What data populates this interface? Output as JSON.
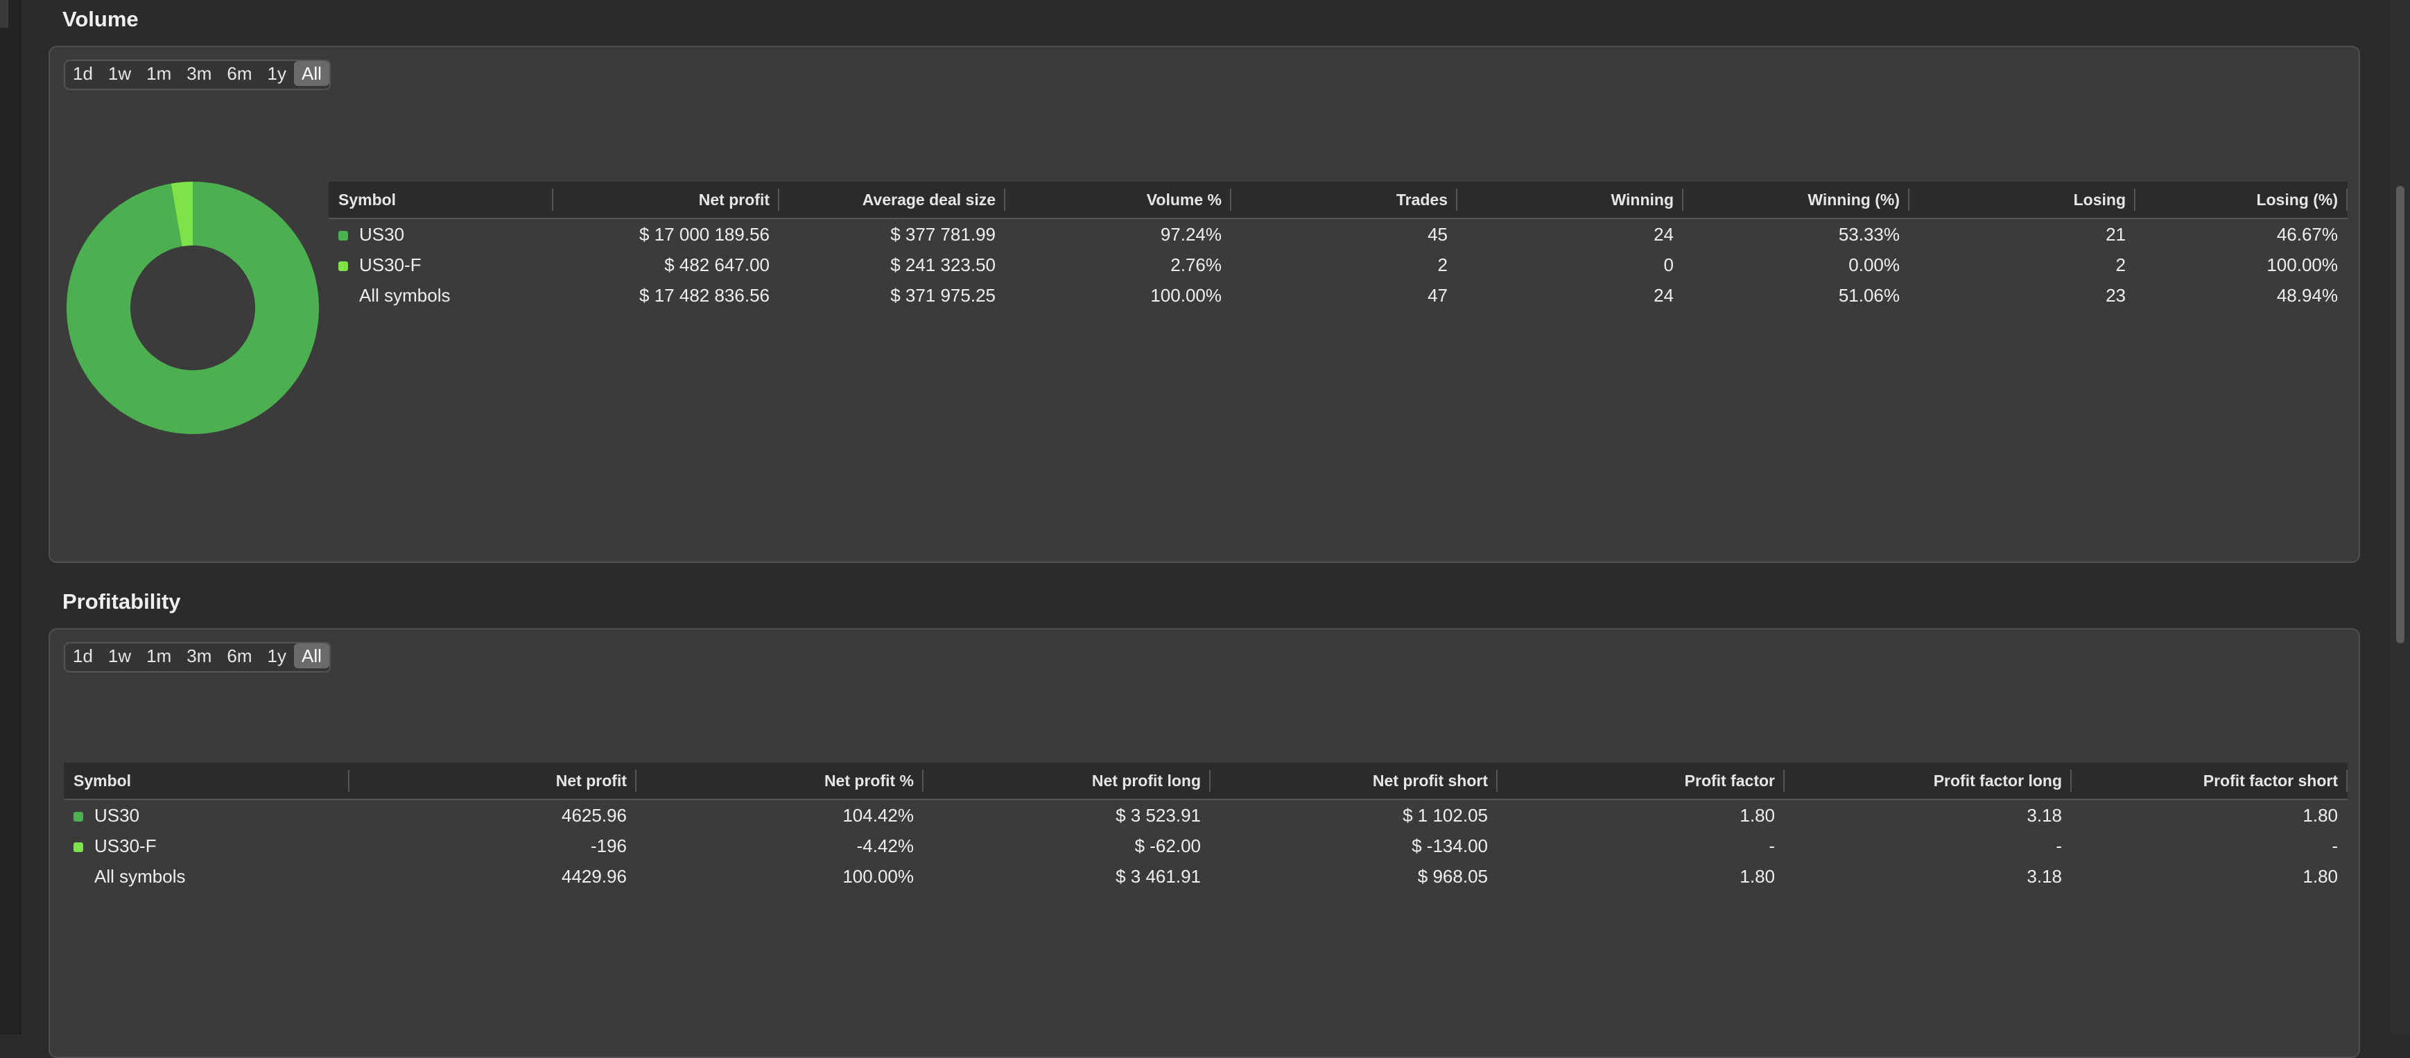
{
  "colors": {
    "us30": "#4caf50",
    "us30f": "#7ee34a",
    "background": "#2b2b2b",
    "panel": "#3b3b3b"
  },
  "ranges": [
    "1d",
    "1w",
    "1m",
    "3m",
    "6m",
    "1y",
    "All"
  ],
  "volume": {
    "title": "Volume",
    "active_range": "All",
    "columns": [
      "Symbol",
      "Net profit",
      "Average deal size",
      "Volume %",
      "Trades",
      "Winning",
      "Winning (%)",
      "Losing",
      "Losing (%)"
    ],
    "rows": [
      [
        "US30",
        "$ 17 000 189.56",
        "$ 377 781.99",
        "97.24%",
        "45",
        "24",
        "53.33%",
        "21",
        "46.67%"
      ],
      [
        "US30-F",
        "$ 482 647.00",
        "$ 241 323.50",
        "2.76%",
        "2",
        "0",
        "0.00%",
        "2",
        "100.00%"
      ],
      [
        "All symbols",
        "$ 17 482 836.56",
        "$ 371 975.25",
        "100.00%",
        "47",
        "24",
        "51.06%",
        "23",
        "48.94%"
      ]
    ],
    "chart_data": {
      "type": "pie",
      "donut": true,
      "categories": [
        "US30",
        "US30-F"
      ],
      "values": [
        97.24,
        2.76
      ],
      "colors": [
        "#4caf50",
        "#7ee34a"
      ]
    }
  },
  "profitability": {
    "title": "Profitability",
    "active_range": "All",
    "columns": [
      "Symbol",
      "Net profit",
      "Net profit %",
      "Net profit long",
      "Net profit short",
      "Profit factor",
      "Profit factor long",
      "Profit factor short"
    ],
    "rows": [
      [
        "US30",
        "4625.96",
        "104.42%",
        "$ 3 523.91",
        "$ 1 102.05",
        "1.80",
        "3.18",
        "1.80"
      ],
      [
        "US30-F",
        "-196",
        "-4.42%",
        "$ -62.00",
        "$ -134.00",
        "-",
        "-",
        "-"
      ],
      [
        "All symbols",
        "4429.96",
        "100.00%",
        "$ 3 461.91",
        "$ 968.05",
        "1.80",
        "3.18",
        "1.80"
      ]
    ]
  }
}
